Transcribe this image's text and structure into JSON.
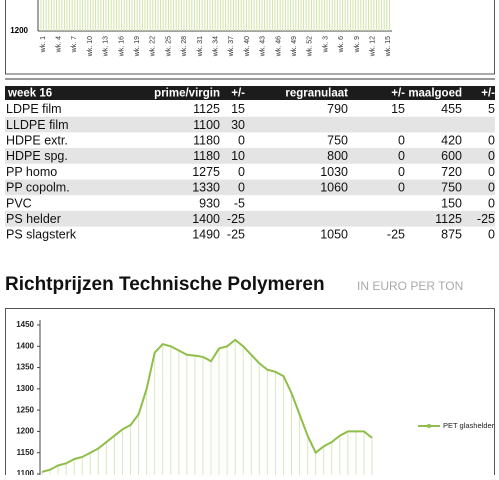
{
  "chart_data": [
    {
      "type": "line",
      "categories": [
        "wk. 1",
        "wk. 4",
        "wk. 7",
        "wk. 10",
        "wk. 13",
        "wk. 16",
        "wk. 19",
        "wk. 22",
        "wk. 25",
        "wk. 28",
        "wk. 31",
        "wk. 34",
        "wk. 37",
        "wk. 40",
        "wk. 43",
        "wk. 46",
        "wk. 49",
        "wk. 52",
        "wk. 3",
        "wk. 6",
        "wk. 9",
        "wk. 12",
        "wk. 15"
      ],
      "ylim": [
        1200,
        1450
      ],
      "yticks": [
        1200
      ],
      "color": "#cfe3a8"
    },
    {
      "type": "line",
      "ylim": [
        1100,
        1450
      ],
      "yticks": [
        1100,
        1150,
        1200,
        1250,
        1300,
        1350,
        1400,
        1450
      ],
      "legend": "right",
      "series": [
        {
          "name": "PET glashelder",
          "color": "#8fbf4a",
          "values": [
            1105,
            1110,
            1120,
            1125,
            1135,
            1140,
            1150,
            1160,
            1175,
            1190,
            1205,
            1215,
            1240,
            1300,
            1385,
            1405,
            1400,
            1390,
            1380,
            1378,
            1375,
            1365,
            1395,
            1400,
            1415,
            1400,
            1380,
            1360,
            1345,
            1340,
            1330,
            1290,
            1240,
            1190,
            1150,
            1165,
            1175,
            1190,
            1200,
            1200,
            1200,
            1185
          ]
        }
      ]
    }
  ],
  "table": {
    "header": [
      "week 16",
      "prime/virgin",
      "+/-",
      "regranulaat",
      "+/-",
      "maalgoed",
      "+/-"
    ],
    "rows": [
      [
        "LDPE film",
        "1125",
        "15",
        "790",
        "15",
        "455",
        "5"
      ],
      [
        "LLDPE film",
        "1100",
        "30",
        "",
        "",
        "",
        ""
      ],
      [
        "HDPE extr.",
        "1180",
        "0",
        "750",
        "0",
        "420",
        "0"
      ],
      [
        "HDPE spg.",
        "1180",
        "10",
        "800",
        "0",
        "600",
        "0"
      ],
      [
        "PP homo",
        "1275",
        "0",
        "1030",
        "0",
        "720",
        "0"
      ],
      [
        "PP copolm.",
        "1330",
        "0",
        "1060",
        "0",
        "750",
        "0"
      ],
      [
        "PVC",
        "930",
        "-5",
        "",
        "",
        "150",
        "0"
      ],
      [
        "PS helder",
        "1400",
        "-25",
        "",
        "",
        "1125",
        "-25"
      ],
      [
        "PS slagsterk",
        "1490",
        "-25",
        "1050",
        "-25",
        "875",
        "0"
      ]
    ]
  },
  "heading": {
    "title": "Richtprijzen Technische Polymeren",
    "subtitle": "IN EURO PER TON"
  }
}
